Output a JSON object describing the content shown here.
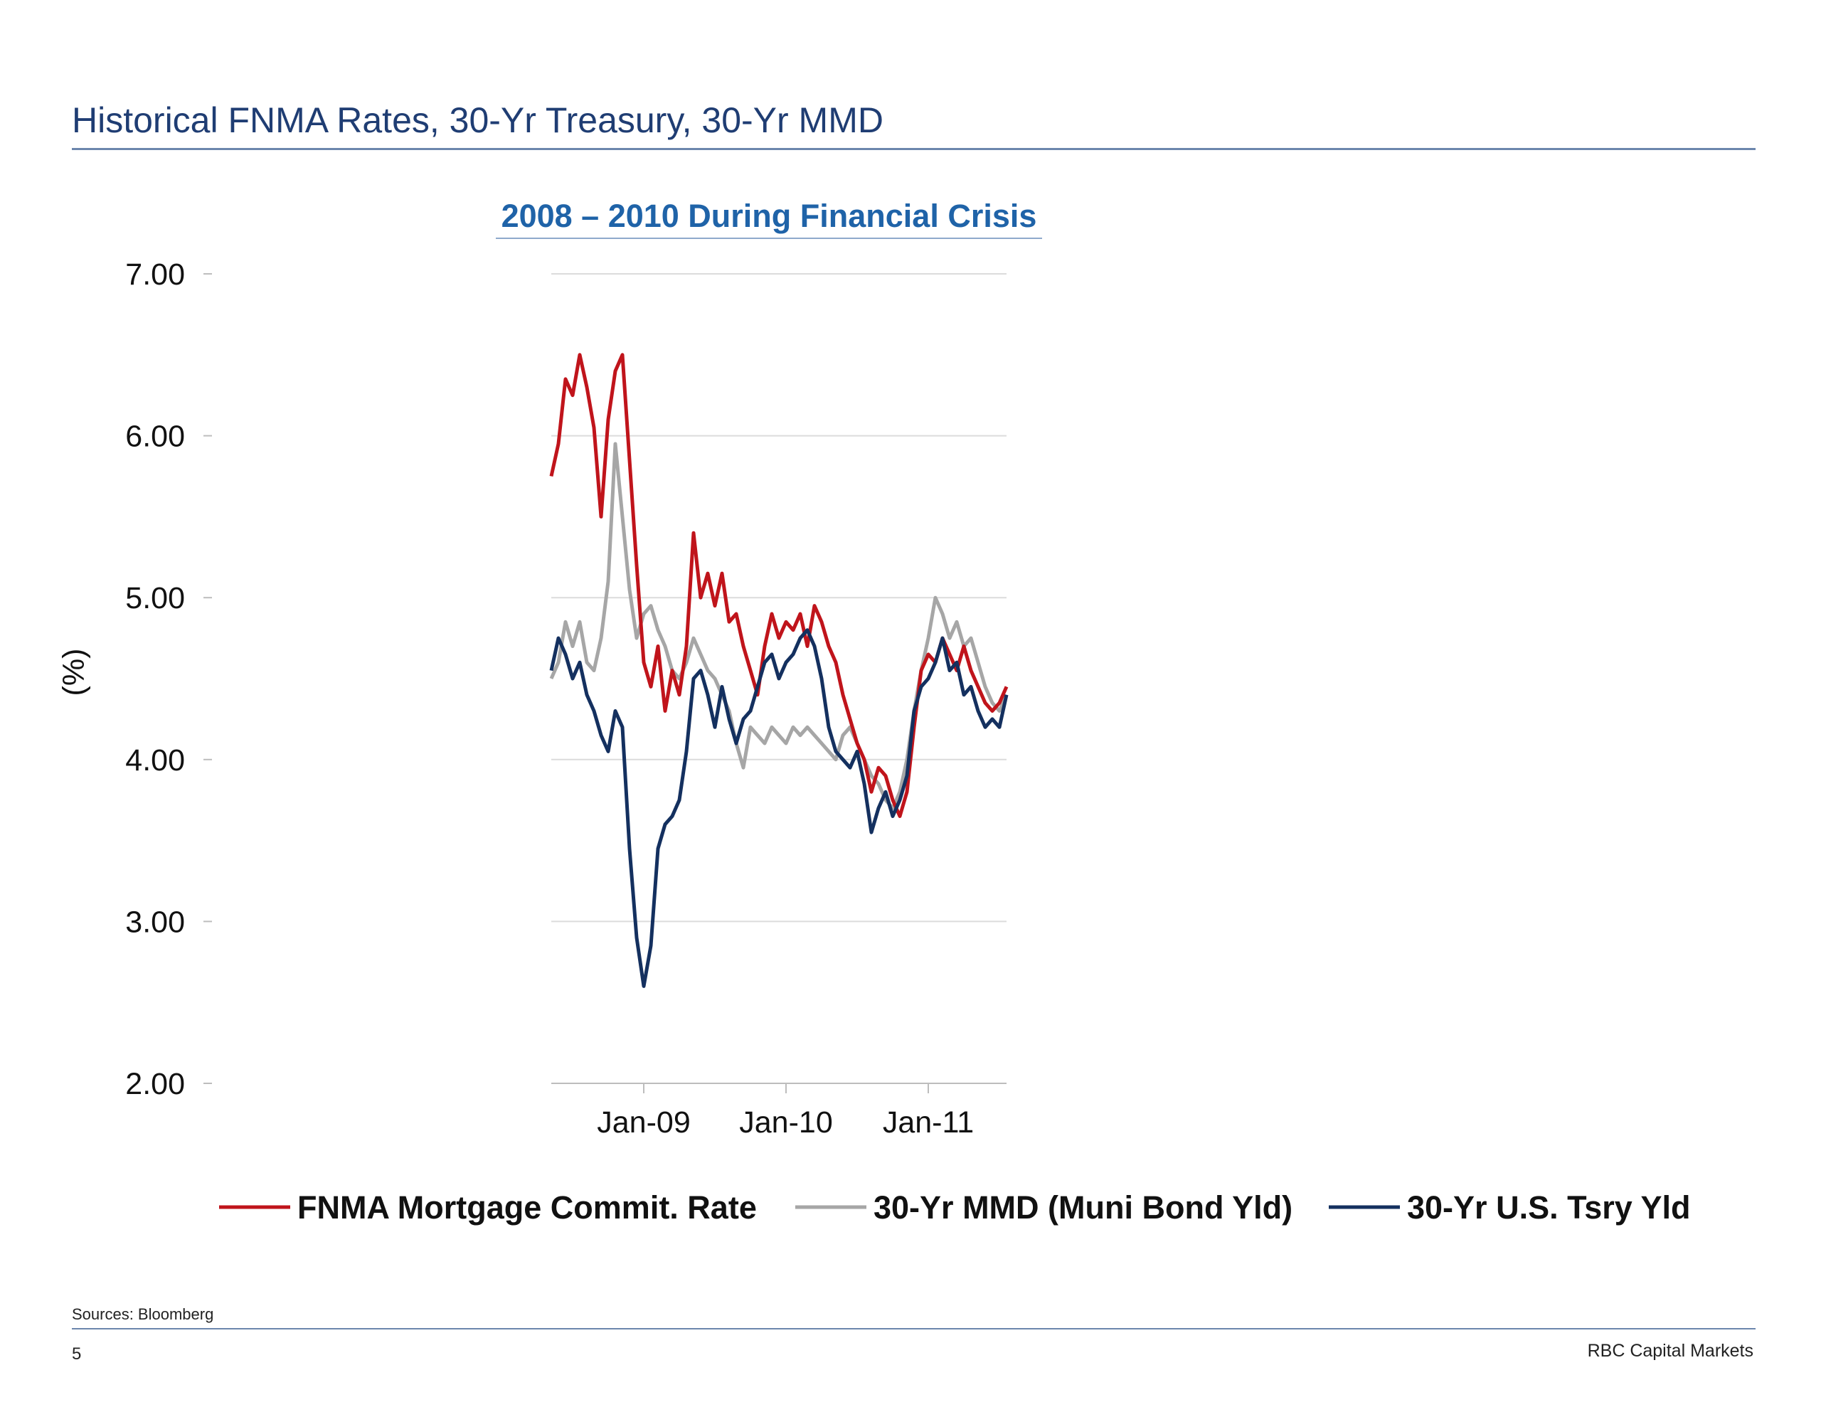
{
  "header": {
    "title": "Historical FNMA Rates, 30-Yr Treasury, 30-Yr MMD"
  },
  "footer": {
    "source": "Sources: Bloomberg",
    "page_number": "5",
    "brand": "RBC Capital Markets"
  },
  "colors": {
    "fnma": "#c0141b",
    "mmd": "#a6a6a6",
    "tsry": "#14305f",
    "accent": "#1f3d73"
  },
  "chart_data": {
    "type": "line",
    "title": "2008 – 2010 During Financial Crisis",
    "xlabel": "",
    "ylabel": "(%)",
    "ylim": [
      2.0,
      7.0
    ],
    "yticks": [
      "7.00",
      "6.00",
      "5.00",
      "4.00",
      "3.00",
      "2.00"
    ],
    "xticks": [
      {
        "label": "Jan-09",
        "x": 2009.0
      },
      {
        "label": "Jan-10",
        "x": 2010.0
      },
      {
        "label": "Jan-11",
        "x": 2011.0
      }
    ],
    "xlim": [
      2008.35,
      2011.55
    ],
    "grid": true,
    "legend": "bottom",
    "series": [
      {
        "name": "FNMA Mortgage Commit. Rate",
        "x": [
          2008.35,
          2008.4,
          2008.45,
          2008.5,
          2008.55,
          2008.6,
          2008.65,
          2008.7,
          2008.75,
          2008.8,
          2008.85,
          2008.9,
          2008.95,
          2009.0,
          2009.05,
          2009.1,
          2009.15,
          2009.2,
          2009.25,
          2009.3,
          2009.35,
          2009.4,
          2009.45,
          2009.5,
          2009.55,
          2009.6,
          2009.65,
          2009.7,
          2009.75,
          2009.8,
          2009.85,
          2009.9,
          2009.95,
          2010.0,
          2010.05,
          2010.1,
          2010.15,
          2010.2,
          2010.25,
          2010.3,
          2010.35,
          2010.4,
          2010.45,
          2010.5,
          2010.55,
          2010.6,
          2010.65,
          2010.7,
          2010.75,
          2010.8,
          2010.85,
          2010.9,
          2010.95,
          2011.0,
          2011.05,
          2011.1,
          2011.15,
          2011.2,
          2011.25,
          2011.3,
          2011.35,
          2011.4,
          2011.45,
          2011.5,
          2011.55
        ],
        "y": [
          5.75,
          5.95,
          6.35,
          6.25,
          6.5,
          6.3,
          6.05,
          5.5,
          6.1,
          6.4,
          6.5,
          5.85,
          5.2,
          4.6,
          4.45,
          4.7,
          4.3,
          4.55,
          4.4,
          4.7,
          5.4,
          5.0,
          5.15,
          4.95,
          5.15,
          4.85,
          4.9,
          4.7,
          4.55,
          4.4,
          4.7,
          4.9,
          4.75,
          4.85,
          4.8,
          4.9,
          4.7,
          4.95,
          4.85,
          4.7,
          4.6,
          4.4,
          4.25,
          4.1,
          4.0,
          3.8,
          3.95,
          3.9,
          3.75,
          3.65,
          3.8,
          4.2,
          4.55,
          4.65,
          4.6,
          4.75,
          4.65,
          4.55,
          4.7,
          4.55,
          4.45,
          4.35,
          4.3,
          4.35,
          4.45
        ]
      },
      {
        "name": "30-Yr MMD (Muni Bond Yld)",
        "x": [
          2008.35,
          2008.4,
          2008.45,
          2008.5,
          2008.55,
          2008.6,
          2008.65,
          2008.7,
          2008.75,
          2008.8,
          2008.85,
          2008.9,
          2008.95,
          2009.0,
          2009.05,
          2009.1,
          2009.15,
          2009.2,
          2009.25,
          2009.3,
          2009.35,
          2009.4,
          2009.45,
          2009.5,
          2009.55,
          2009.6,
          2009.65,
          2009.7,
          2009.75,
          2009.8,
          2009.85,
          2009.9,
          2009.95,
          2010.0,
          2010.05,
          2010.1,
          2010.15,
          2010.2,
          2010.25,
          2010.3,
          2010.35,
          2010.4,
          2010.45,
          2010.5,
          2010.55,
          2010.6,
          2010.65,
          2010.7,
          2010.75,
          2010.8,
          2010.85,
          2010.9,
          2010.95,
          2011.0,
          2011.05,
          2011.1,
          2011.15,
          2011.2,
          2011.25,
          2011.3,
          2011.35,
          2011.4,
          2011.45,
          2011.5,
          2011.55
        ],
        "y": [
          4.5,
          4.6,
          4.85,
          4.7,
          4.85,
          4.6,
          4.55,
          4.75,
          5.1,
          5.95,
          5.5,
          5.05,
          4.75,
          4.9,
          4.95,
          4.8,
          4.7,
          4.55,
          4.5,
          4.6,
          4.75,
          4.65,
          4.55,
          4.5,
          4.4,
          4.3,
          4.1,
          3.95,
          4.2,
          4.15,
          4.1,
          4.2,
          4.15,
          4.1,
          4.2,
          4.15,
          4.2,
          4.15,
          4.1,
          4.05,
          4.0,
          4.15,
          4.2,
          4.1,
          4.0,
          3.9,
          3.85,
          3.75,
          3.7,
          3.8,
          4.0,
          4.3,
          4.55,
          4.75,
          5.0,
          4.9,
          4.75,
          4.85,
          4.7,
          4.75,
          4.6,
          4.45,
          4.35,
          4.3,
          4.4
        ]
      },
      {
        "name": "30-Yr U.S. Tsry Yld",
        "x": [
          2008.35,
          2008.4,
          2008.45,
          2008.5,
          2008.55,
          2008.6,
          2008.65,
          2008.7,
          2008.75,
          2008.8,
          2008.85,
          2008.9,
          2008.95,
          2009.0,
          2009.05,
          2009.1,
          2009.15,
          2009.2,
          2009.25,
          2009.3,
          2009.35,
          2009.4,
          2009.45,
          2009.5,
          2009.55,
          2009.6,
          2009.65,
          2009.7,
          2009.75,
          2009.8,
          2009.85,
          2009.9,
          2009.95,
          2010.0,
          2010.05,
          2010.1,
          2010.15,
          2010.2,
          2010.25,
          2010.3,
          2010.35,
          2010.4,
          2010.45,
          2010.5,
          2010.55,
          2010.6,
          2010.65,
          2010.7,
          2010.75,
          2010.8,
          2010.85,
          2010.9,
          2010.95,
          2011.0,
          2011.05,
          2011.1,
          2011.15,
          2011.2,
          2011.25,
          2011.3,
          2011.35,
          2011.4,
          2011.45,
          2011.5,
          2011.55
        ],
        "y": [
          4.55,
          4.75,
          4.65,
          4.5,
          4.6,
          4.4,
          4.3,
          4.15,
          4.05,
          4.3,
          4.2,
          3.45,
          2.9,
          2.6,
          2.85,
          3.45,
          3.6,
          3.65,
          3.75,
          4.05,
          4.5,
          4.55,
          4.4,
          4.2,
          4.45,
          4.25,
          4.1,
          4.25,
          4.3,
          4.45,
          4.6,
          4.65,
          4.5,
          4.6,
          4.65,
          4.75,
          4.8,
          4.7,
          4.5,
          4.2,
          4.05,
          4.0,
          3.95,
          4.05,
          3.85,
          3.55,
          3.7,
          3.8,
          3.65,
          3.75,
          3.9,
          4.3,
          4.45,
          4.5,
          4.6,
          4.75,
          4.55,
          4.6,
          4.4,
          4.45,
          4.3,
          4.2,
          4.25,
          4.2,
          4.4
        ]
      }
    ]
  }
}
